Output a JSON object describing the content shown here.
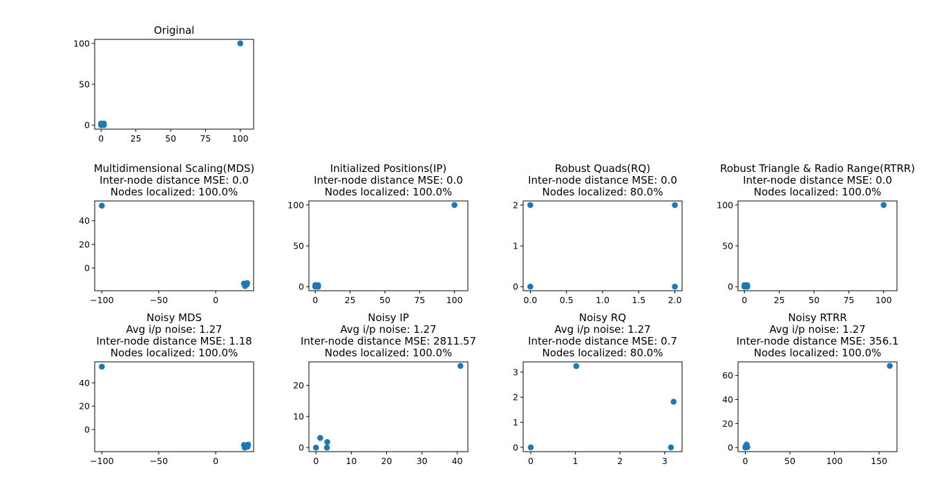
{
  "colors": {
    "marker": "#1f77b4",
    "axis": "#000000"
  },
  "chart_data": [
    {
      "type": "scatter",
      "id": "original",
      "title_lines": [
        "Original"
      ],
      "xlim": [
        -4.6,
        109.6
      ],
      "ylim": [
        -4.9,
        104.9
      ],
      "xticks": [
        0,
        25,
        50,
        75,
        100
      ],
      "xtick_labels": [
        "0",
        "25",
        "50",
        "75",
        "100"
      ],
      "yticks": [
        0,
        50,
        100
      ],
      "ytick_labels": [
        "0",
        "50",
        "100"
      ],
      "points": [
        [
          0,
          0
        ],
        [
          2,
          0
        ],
        [
          0,
          2
        ],
        [
          2,
          2
        ],
        [
          100,
          100
        ]
      ]
    },
    {
      "type": "scatter",
      "id": "mds",
      "title_lines": [
        "Multidimensional Scaling(MDS)",
        "Inter-node distance MSE: 0.0",
        "Nodes localized: 100.0%"
      ],
      "xlim": [
        -106.3,
        33.3
      ],
      "ylim": [
        -19.2,
        56.7
      ],
      "xticks": [
        -100,
        -50,
        0
      ],
      "xtick_labels": [
        "−100",
        "−50",
        "0"
      ],
      "yticks": [
        0,
        20,
        40
      ],
      "ytick_labels": [
        "0",
        "20",
        "40"
      ],
      "points": [
        [
          -100,
          52.7
        ],
        [
          24.8,
          -13.1
        ],
        [
          27.3,
          -13.9
        ],
        [
          25.8,
          -15.2
        ],
        [
          27.6,
          -12.7
        ]
      ]
    },
    {
      "type": "scatter",
      "id": "ip",
      "title_lines": [
        "Initialized Positions(IP)",
        "Inter-node distance MSE: 0.0",
        "Nodes localized: 100.0%"
      ],
      "xlim": [
        -4.6,
        109.6
      ],
      "ylim": [
        -4.9,
        104.9
      ],
      "xticks": [
        0,
        25,
        50,
        75,
        100
      ],
      "xtick_labels": [
        "0",
        "25",
        "50",
        "75",
        "100"
      ],
      "yticks": [
        0,
        50,
        100
      ],
      "ytick_labels": [
        "0",
        "50",
        "100"
      ],
      "points": [
        [
          0,
          0
        ],
        [
          2,
          0
        ],
        [
          0,
          2
        ],
        [
          2,
          2
        ],
        [
          100,
          100
        ]
      ]
    },
    {
      "type": "scatter",
      "id": "rq",
      "title_lines": [
        "Robust Quads(RQ)",
        "Inter-node distance MSE: 0.0",
        "Nodes localized: 80.0%"
      ],
      "xlim": [
        -0.1,
        2.1
      ],
      "ylim": [
        -0.1,
        2.1
      ],
      "xticks": [
        0,
        0.5,
        1,
        1.5,
        2
      ],
      "xtick_labels": [
        "0.0",
        "0.5",
        "1.0",
        "1.5",
        "2.0"
      ],
      "yticks": [
        0,
        1,
        2
      ],
      "ytick_labels": [
        "0",
        "1",
        "2"
      ],
      "points": [
        [
          0,
          0
        ],
        [
          2,
          0
        ],
        [
          0,
          2
        ],
        [
          2,
          2
        ]
      ]
    },
    {
      "type": "scatter",
      "id": "rtrr",
      "title_lines": [
        "Robust Triangle & Radio Range(RTRR)",
        "Inter-node distance MSE: 0.0",
        "Nodes localized: 100.0%"
      ],
      "xlim": [
        -4.6,
        109.6
      ],
      "ylim": [
        -4.9,
        104.9
      ],
      "xticks": [
        0,
        25,
        50,
        75,
        100
      ],
      "xtick_labels": [
        "0",
        "25",
        "50",
        "75",
        "100"
      ],
      "yticks": [
        0,
        50,
        100
      ],
      "ytick_labels": [
        "0",
        "50",
        "100"
      ],
      "points": [
        [
          0,
          0
        ],
        [
          2,
          0
        ],
        [
          0,
          2
        ],
        [
          2,
          2
        ],
        [
          100,
          100
        ]
      ]
    },
    {
      "type": "scatter",
      "id": "noisy-mds",
      "title_lines": [
        "Noisy MDS",
        "Avg i/p noise: 1.27",
        "Inter-node distance MSE: 1.18",
        "Nodes localized: 100.0%"
      ],
      "xlim": [
        -106.3,
        33.3
      ],
      "ylim": [
        -18.9,
        57.9
      ],
      "xticks": [
        -100,
        -50,
        0
      ],
      "xtick_labels": [
        "−100",
        "−50",
        "0"
      ],
      "yticks": [
        0,
        20,
        40
      ],
      "ytick_labels": [
        "0",
        "20",
        "40"
      ],
      "points": [
        [
          -100,
          53.8
        ],
        [
          24.8,
          -13.2
        ],
        [
          28.5,
          -12.9
        ],
        [
          25.5,
          -15.5
        ],
        [
          28.0,
          -14.7
        ]
      ]
    },
    {
      "type": "scatter",
      "id": "noisy-ip",
      "title_lines": [
        "Noisy IP",
        "Avg i/p noise: 1.27",
        "Inter-node distance MSE: 2811.57",
        "Nodes localized: 100.0%"
      ],
      "xlim": [
        -2.0,
        43.0
      ],
      "ylim": [
        -1.3,
        27.6
      ],
      "xticks": [
        0,
        10,
        20,
        30,
        40
      ],
      "xtick_labels": [
        "0",
        "10",
        "20",
        "30",
        "40"
      ],
      "yticks": [
        0,
        10,
        20
      ],
      "ytick_labels": [
        "0",
        "10",
        "20"
      ],
      "points": [
        [
          0,
          0
        ],
        [
          1.2,
          3.1
        ],
        [
          3.2,
          1.8
        ],
        [
          3.1,
          0
        ],
        [
          40.9,
          26.3
        ]
      ]
    },
    {
      "type": "scatter",
      "id": "noisy-rq",
      "title_lines": [
        "Noisy RQ",
        "Avg i/p noise: 1.27",
        "Inter-node distance MSE: 0.7",
        "Nodes localized: 80.0%"
      ],
      "xlim": [
        -0.17,
        3.39
      ],
      "ylim": [
        -0.17,
        3.41
      ],
      "xticks": [
        0,
        1,
        2,
        3
      ],
      "xtick_labels": [
        "0",
        "1",
        "2",
        "3"
      ],
      "yticks": [
        0,
        1,
        2,
        3
      ],
      "ytick_labels": [
        "0",
        "1",
        "2",
        "3"
      ],
      "points": [
        [
          0,
          0
        ],
        [
          1.02,
          3.24
        ],
        [
          3.2,
          1.82
        ],
        [
          3.14,
          0
        ]
      ]
    },
    {
      "type": "scatter",
      "id": "noisy-rtrr",
      "title_lines": [
        "Noisy RTRR",
        "Avg i/p noise: 1.27",
        "Inter-node distance MSE: 356.1",
        "Nodes localized: 100.0%"
      ],
      "xlim": [
        -8.1,
        170.1
      ],
      "ylim": [
        -3.4,
        71.3
      ],
      "xticks": [
        0,
        50,
        100,
        150
      ],
      "xtick_labels": [
        "0",
        "50",
        "100",
        "150"
      ],
      "yticks": [
        0,
        20,
        40,
        60
      ],
      "ytick_labels": [
        "0",
        "20",
        "40",
        "60"
      ],
      "points": [
        [
          0,
          0
        ],
        [
          1.5,
          2.5
        ],
        [
          0.5,
          1.2
        ],
        [
          2.3,
          0.4
        ],
        [
          162.0,
          68.0
        ]
      ]
    }
  ]
}
